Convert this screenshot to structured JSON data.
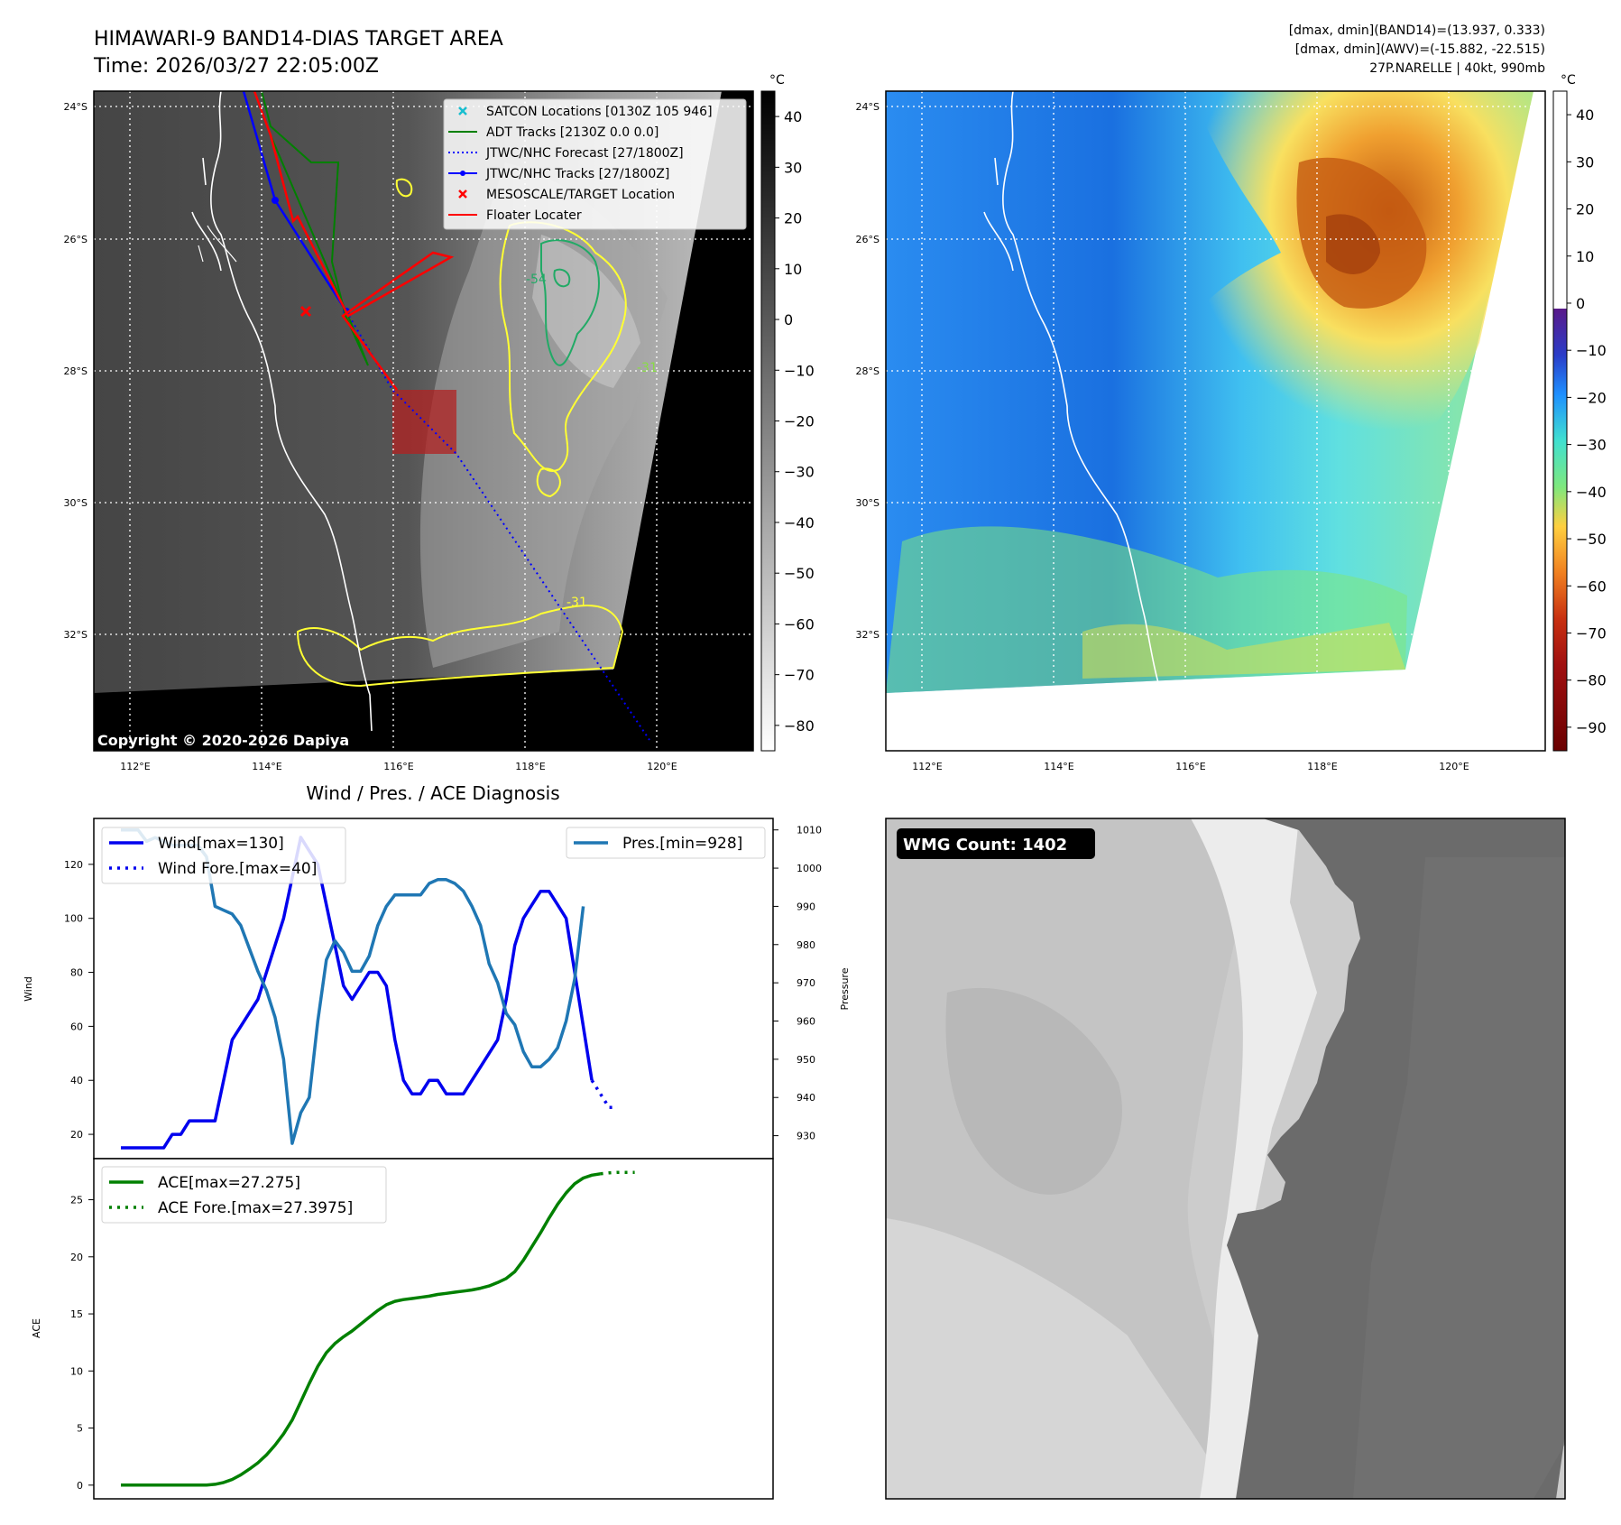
{
  "header": {
    "title_line1": "HIMAWARI-9 BAND14-DIAS TARGET AREA",
    "title_line2": "Time: 2026/03/27 22:05:00Z",
    "info_line1": "[dmax, dmin](BAND14)=(13.937, 0.333)",
    "info_line2": "[dmax, dmin](AWV)=(-15.882, -22.515)",
    "info_line3": "27P.NARELLE | 40kt, 990mb"
  },
  "map": {
    "lat_labels": [
      "24°S",
      "26°S",
      "28°S",
      "30°S",
      "32°S"
    ],
    "lon_labels": [
      "112°E",
      "114°E",
      "116°E",
      "118°E",
      "120°E"
    ],
    "copyright": "Copyright © 2020-2026 Dapiya",
    "contour_labels": [
      "-54",
      "-31",
      "-31"
    ],
    "legend": [
      {
        "label": "SATCON Locations [0130Z 105 946]",
        "marker": "x",
        "color": "#17becf"
      },
      {
        "label": "ADT Tracks [2130Z 0.0 0.0]",
        "marker": "line",
        "color": "#008000"
      },
      {
        "label": "JTWC/NHC Forecast [27/1800Z]",
        "marker": "dotted",
        "color": "#0000ff"
      },
      {
        "label": "JTWC/NHC Tracks [27/1800Z]",
        "marker": "line-dot",
        "color": "#0000ff"
      },
      {
        "label": "MESOSCALE/TARGET Location",
        "marker": "x",
        "color": "#ff0000"
      },
      {
        "label": "Floater Locater",
        "marker": "line",
        "color": "#ff0000"
      }
    ]
  },
  "colorbar_gray": {
    "unit": "°C",
    "ticks": [
      "40",
      "30",
      "20",
      "10",
      "0",
      "−10",
      "−20",
      "−30",
      "−40",
      "−50",
      "−60",
      "−70",
      "−80"
    ]
  },
  "colorbar_color": {
    "unit": "°C",
    "ticks": [
      "40",
      "30",
      "20",
      "10",
      "0",
      "−10",
      "−20",
      "−30",
      "−40",
      "−50",
      "−60",
      "−70",
      "−80",
      "−90"
    ]
  },
  "wmg": {
    "label": "WMG Count: 1402"
  },
  "chart_data": [
    {
      "type": "line",
      "title": "Wind / Pres. / ACE Diagnosis",
      "ylabel": "Wind",
      "y2label": "Pressure",
      "ylim": [
        11,
        137
      ],
      "y2lim": [
        924,
        1013
      ],
      "yticks": [
        20,
        40,
        60,
        80,
        100,
        120
      ],
      "y2ticks": [
        930,
        940,
        950,
        960,
        970,
        980,
        990,
        1000,
        1010
      ],
      "x_index": [
        0,
        1,
        2,
        3,
        4,
        5,
        6,
        7,
        8,
        9,
        10,
        11,
        12,
        13,
        14,
        15,
        16,
        17,
        18,
        19,
        20,
        21,
        22,
        23,
        24,
        25,
        26,
        27,
        28,
        29,
        30,
        31,
        32,
        33,
        34,
        35,
        36,
        37,
        38,
        39,
        40,
        41,
        42,
        43,
        44,
        45,
        46,
        47,
        48,
        49,
        50,
        51,
        52,
        53,
        54,
        55,
        56,
        57,
        58,
        59,
        60,
        61,
        62,
        63,
        64,
        65,
        66,
        67,
        68,
        69,
        70,
        71,
        72,
        73
      ],
      "series": [
        {
          "name": "Wind[max=130]",
          "axis": "left",
          "style": "solid",
          "color": "#0000ee",
          "values": [
            15,
            15,
            15,
            15,
            15,
            15,
            20,
            20,
            25,
            25,
            25,
            25,
            40,
            55,
            60,
            65,
            70,
            80,
            90,
            100,
            115,
            130,
            125,
            120,
            105,
            90,
            75,
            70,
            75,
            80,
            80,
            75,
            55,
            40,
            35,
            35,
            40,
            40,
            35,
            35,
            35,
            40,
            45,
            50,
            55,
            70,
            90,
            100,
            105,
            110,
            110,
            105,
            100,
            80,
            60,
            40
          ]
        },
        {
          "name": "Wind Fore.[max=40]",
          "axis": "left",
          "style": "dotted",
          "color": "#0000ee",
          "x_start": 55,
          "values": [
            40,
            35,
            30,
            30
          ]
        },
        {
          "name": "Pres.[min=928]",
          "axis": "right",
          "style": "solid",
          "color": "#1f77b4",
          "values": [
            1010,
            1010,
            1010,
            1007,
            1008,
            1007,
            1006,
            1006,
            1006,
            1006,
            1003,
            990,
            989,
            988,
            985,
            979,
            973,
            968,
            961,
            950,
            928,
            936,
            940,
            960,
            976,
            981,
            978,
            973,
            973,
            977,
            985,
            990,
            993,
            993,
            993,
            993,
            996,
            997,
            997,
            996,
            994,
            990,
            985,
            975,
            970,
            962,
            959,
            952,
            948,
            948,
            950,
            953,
            960,
            971,
            990
          ]
        }
      ]
    },
    {
      "type": "line",
      "ylabel": "ACE",
      "ylim": [
        -1.2,
        28.6
      ],
      "yticks": [
        0,
        5,
        10,
        15,
        20,
        25
      ],
      "series": [
        {
          "name": "ACE[max=27.275]",
          "style": "solid",
          "color": "#008000",
          "values": [
            0,
            0,
            0,
            0,
            0,
            0,
            0,
            0,
            0,
            0,
            0,
            0.07,
            0.23,
            0.5,
            0.9,
            1.4,
            1.95,
            2.65,
            3.5,
            4.5,
            5.7,
            7.3,
            8.9,
            10.4,
            11.6,
            12.4,
            13.0,
            13.5,
            14.1,
            14.7,
            15.3,
            15.8,
            16.1,
            16.25,
            16.35,
            16.45,
            16.55,
            16.7,
            16.8,
            16.9,
            17.0,
            17.1,
            17.25,
            17.45,
            17.75,
            18.1,
            18.7,
            19.7,
            20.9,
            22.1,
            23.4,
            24.6,
            25.6,
            26.4,
            26.9,
            27.15,
            27.275
          ]
        },
        {
          "name": "ACE Fore.[max=27.3975]",
          "style": "dotted",
          "color": "#008000",
          "x_start": 56,
          "values": [
            27.275,
            27.35,
            27.3975,
            27.3975,
            27.3975
          ]
        }
      ]
    }
  ]
}
